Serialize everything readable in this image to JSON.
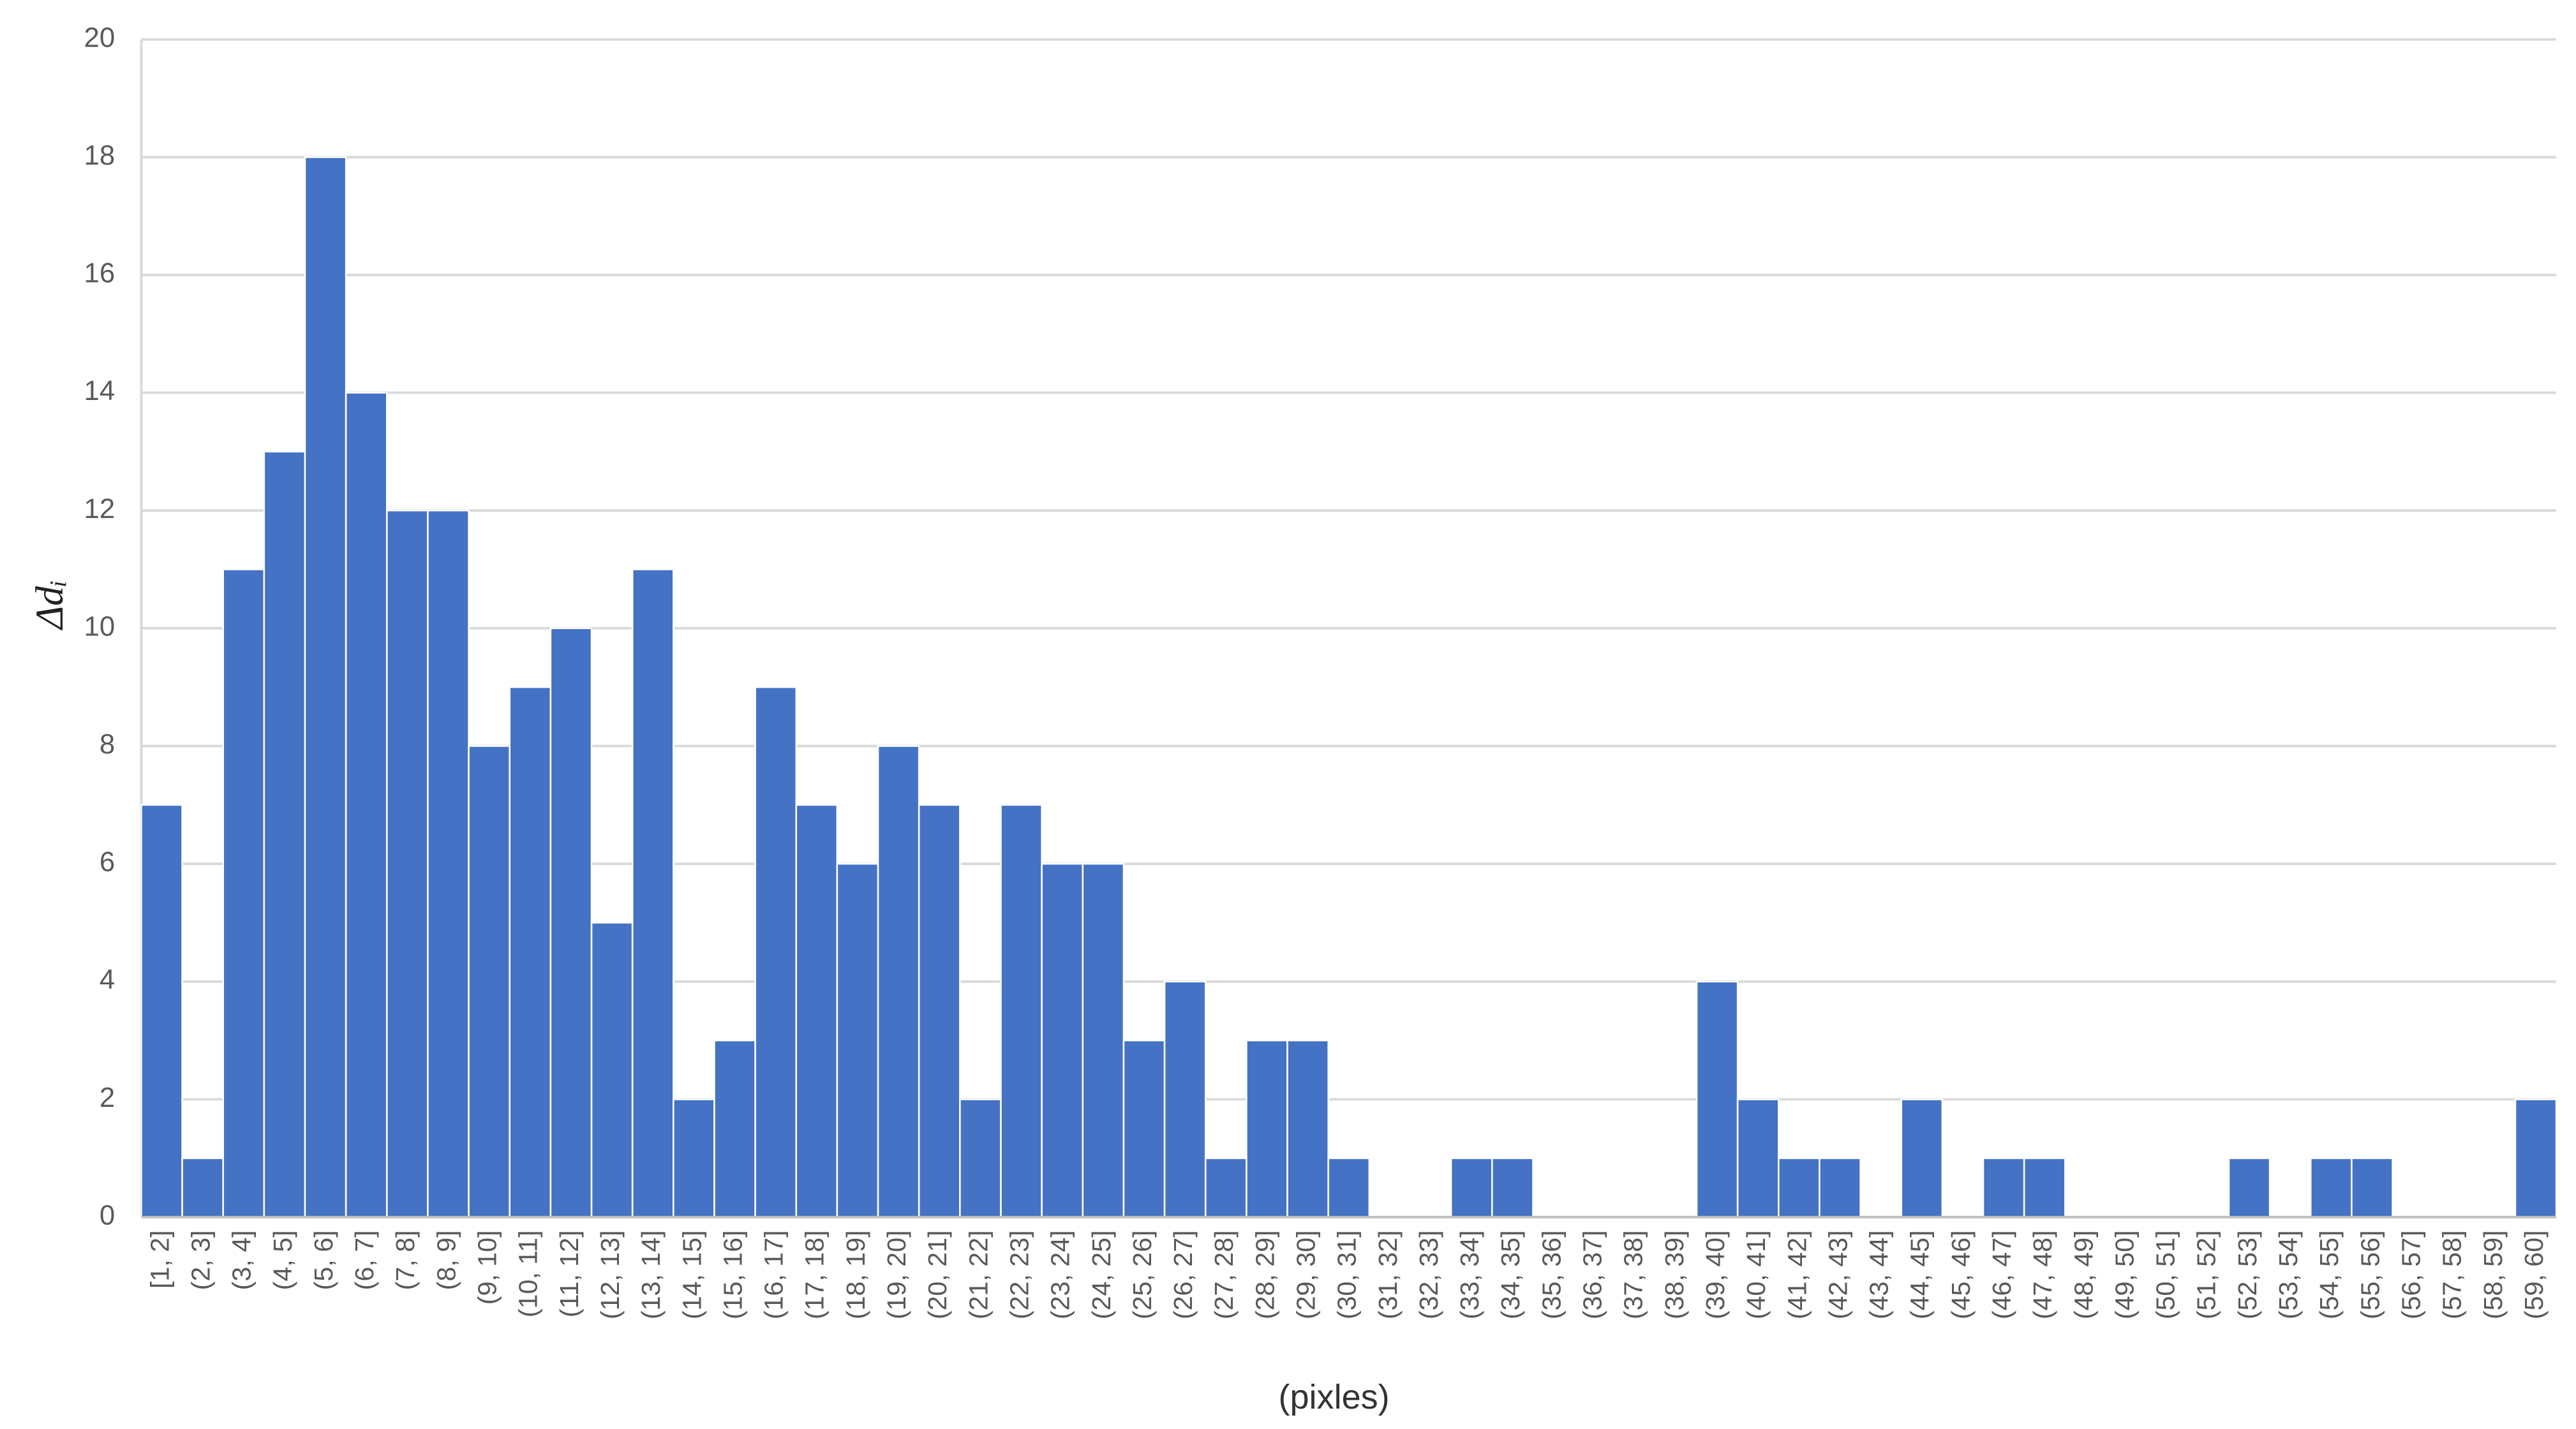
{
  "chart_data": {
    "type": "bar",
    "y_label": "Δdᵢ",
    "x_label": "(pixles)",
    "categories": [
      "[1, 2]",
      "(2, 3]",
      "(3, 4]",
      "(4, 5]",
      "(5, 6]",
      "(6, 7]",
      "(7, 8]",
      "(8, 9]",
      "(9, 10]",
      "(10, 11]",
      "(11, 12]",
      "(12, 13]",
      "(13, 14]",
      "(14, 15]",
      "(15, 16]",
      "(16, 17]",
      "(17, 18]",
      "(18, 19]",
      "(19, 20]",
      "(20, 21]",
      "(21, 22]",
      "(22, 23]",
      "(23, 24]",
      "(24, 25]",
      "(25, 26]",
      "(26, 27]",
      "(27, 28]",
      "(28, 29]",
      "(29, 30]",
      "(30, 31]",
      "(31, 32]",
      "(32, 33]",
      "(33, 34]",
      "(34, 35]",
      "(35, 36]",
      "(36, 37]",
      "(37, 38]",
      "(38, 39]",
      "(39, 40]",
      "(40, 41]",
      "(41, 42]",
      "(42, 43]",
      "(43, 44]",
      "(44, 45]",
      "(45, 46]",
      "(46, 47]",
      "(47, 48]",
      "(48, 49]",
      "(49, 50]",
      "(50, 51]",
      "(51, 52]",
      "(52, 53]",
      "(53, 54]",
      "(54, 55]",
      "(55, 56]",
      "(56, 57]",
      "(57, 58]",
      "(58, 59]",
      "(59, 60]"
    ],
    "values": [
      7,
      1,
      11,
      13,
      18,
      14,
      12,
      12,
      8,
      9,
      10,
      5,
      11,
      2,
      3,
      9,
      7,
      6,
      8,
      7,
      2,
      7,
      6,
      6,
      3,
      4,
      1,
      3,
      3,
      1,
      0,
      0,
      1,
      1,
      0,
      0,
      0,
      0,
      4,
      2,
      1,
      1,
      0,
      2,
      0,
      1,
      1,
      0,
      0,
      0,
      0,
      1,
      0,
      1,
      1,
      0,
      0,
      0,
      2
    ],
    "color": "#4472c4",
    "ylim": [
      0,
      20
    ],
    "yticks": [
      0,
      2,
      4,
      6,
      8,
      10,
      12,
      14,
      16,
      18,
      20
    ],
    "grid": true
  }
}
